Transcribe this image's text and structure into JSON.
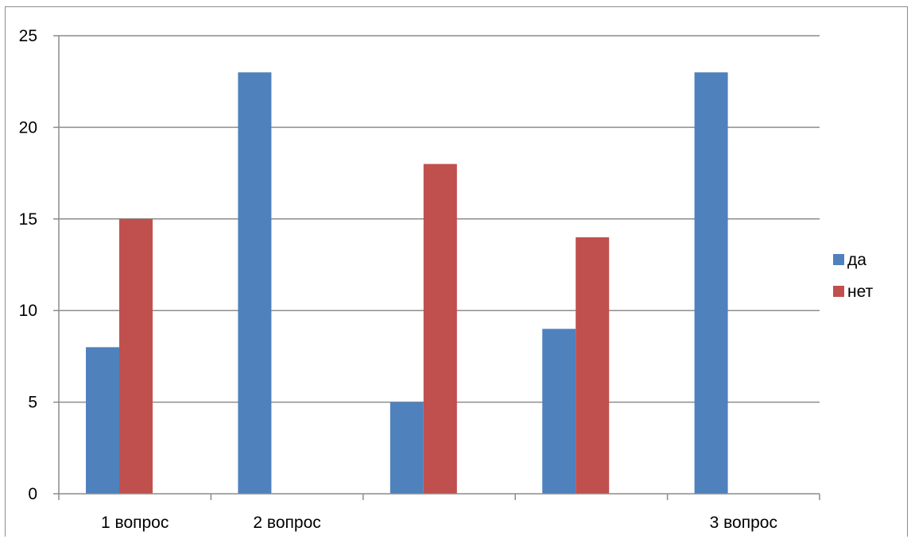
{
  "chart_data": {
    "type": "bar",
    "title": "",
    "xlabel": "",
    "ylabel": "",
    "ylim": [
      0,
      25
    ],
    "yticks": [
      0,
      5,
      10,
      15,
      20,
      25
    ],
    "grid": true,
    "legend_position": "right",
    "categories": [
      "1 вопрос",
      "2 вопрос",
      "",
      "",
      "3 вопрос"
    ],
    "series": [
      {
        "name": "да",
        "color": "#4f81bd",
        "values": [
          8,
          23,
          5,
          9,
          23
        ]
      },
      {
        "name": "нет",
        "color": "#c0504d",
        "values": [
          15,
          null,
          18,
          14,
          null
        ]
      }
    ]
  }
}
